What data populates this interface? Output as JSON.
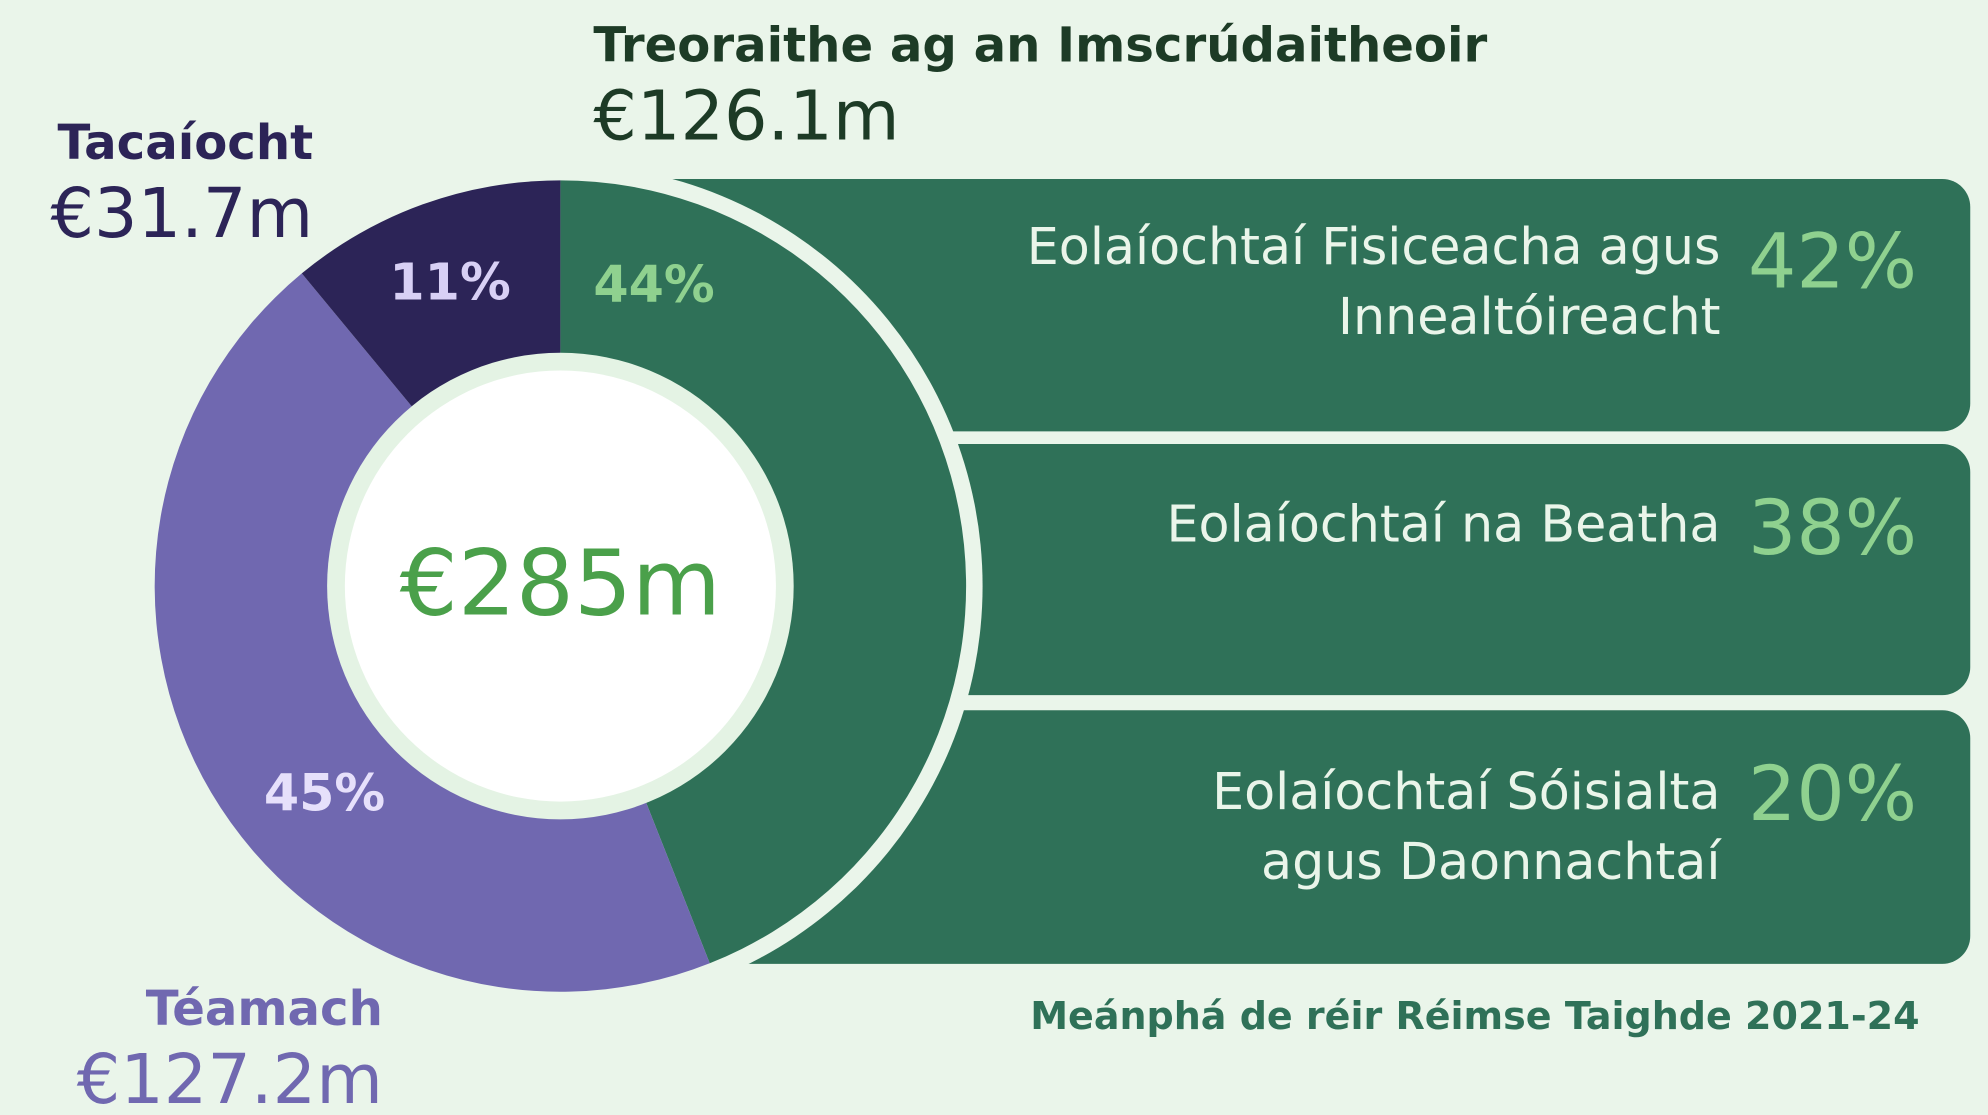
{
  "chart_data": {
    "type": "donut",
    "center_label": "€285m",
    "categories": [
      "Treoraithe ag an Imscrúdaitheoir",
      "Téamach",
      "Tacaíocht"
    ],
    "amount_labels": [
      "€126.1m",
      "€127.2m",
      "€31.7m"
    ],
    "values": [
      44,
      45,
      11
    ],
    "value_labels": [
      "44%",
      "45%",
      "11%"
    ],
    "colors": [
      "#2f7158",
      "#7068b0",
      "#2c2457"
    ],
    "breakdown": {
      "title": "Meánphá de réir Réimse Taighde 2021-24",
      "categories": [
        [
          "Eolaíochtaí Fisiceacha agus",
          "Innealtóireacht"
        ],
        [
          "Eolaíochtaí na Beatha"
        ],
        [
          "Eolaíochtaí Sóisialta",
          "agus Daonnachtaí"
        ]
      ],
      "values": [
        42,
        38,
        20
      ],
      "value_labels": [
        "42%",
        "38%",
        "20%"
      ]
    }
  }
}
